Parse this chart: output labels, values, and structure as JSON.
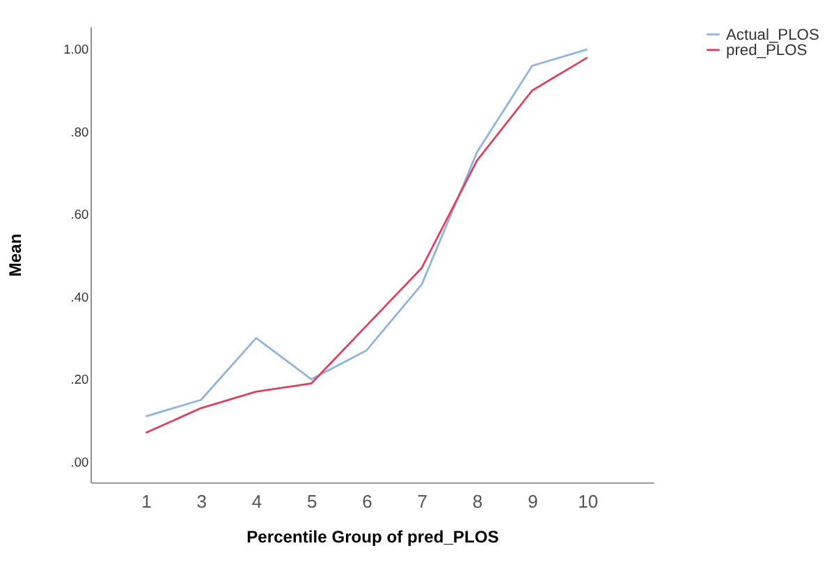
{
  "chart_data": {
    "type": "line",
    "xlabel": "Percentile Group of pred_PLOS",
    "ylabel": "Mean",
    "categories": [
      "1",
      "3",
      "4",
      "5",
      "6",
      "7",
      "8",
      "9",
      "10"
    ],
    "series": [
      {
        "name": "Actual_PLOS",
        "color": "#8fb4e0",
        "values": [
          0.11,
          0.15,
          0.3,
          0.2,
          0.27,
          0.43,
          0.75,
          0.96,
          1.0
        ]
      },
      {
        "name": "pred_PLOS",
        "color": "#e0405e",
        "values": [
          0.07,
          0.13,
          0.17,
          0.19,
          0.33,
          0.47,
          0.73,
          0.9,
          0.98
        ]
      }
    ],
    "ylim": [
      -0.05,
      1.055
    ],
    "yticks": [
      {
        "value": 0,
        "label": ".00"
      },
      {
        "value": 0.2,
        "label": ".20"
      },
      {
        "value": 0.4,
        "label": ".40"
      },
      {
        "value": 0.6,
        "label": ".60"
      },
      {
        "value": 0.8,
        "label": ".80"
      },
      {
        "value": 1.0,
        "label": "1.00"
      }
    ],
    "grid": false,
    "legend": "top right",
    "marker": "none",
    "line_style": "solid"
  }
}
